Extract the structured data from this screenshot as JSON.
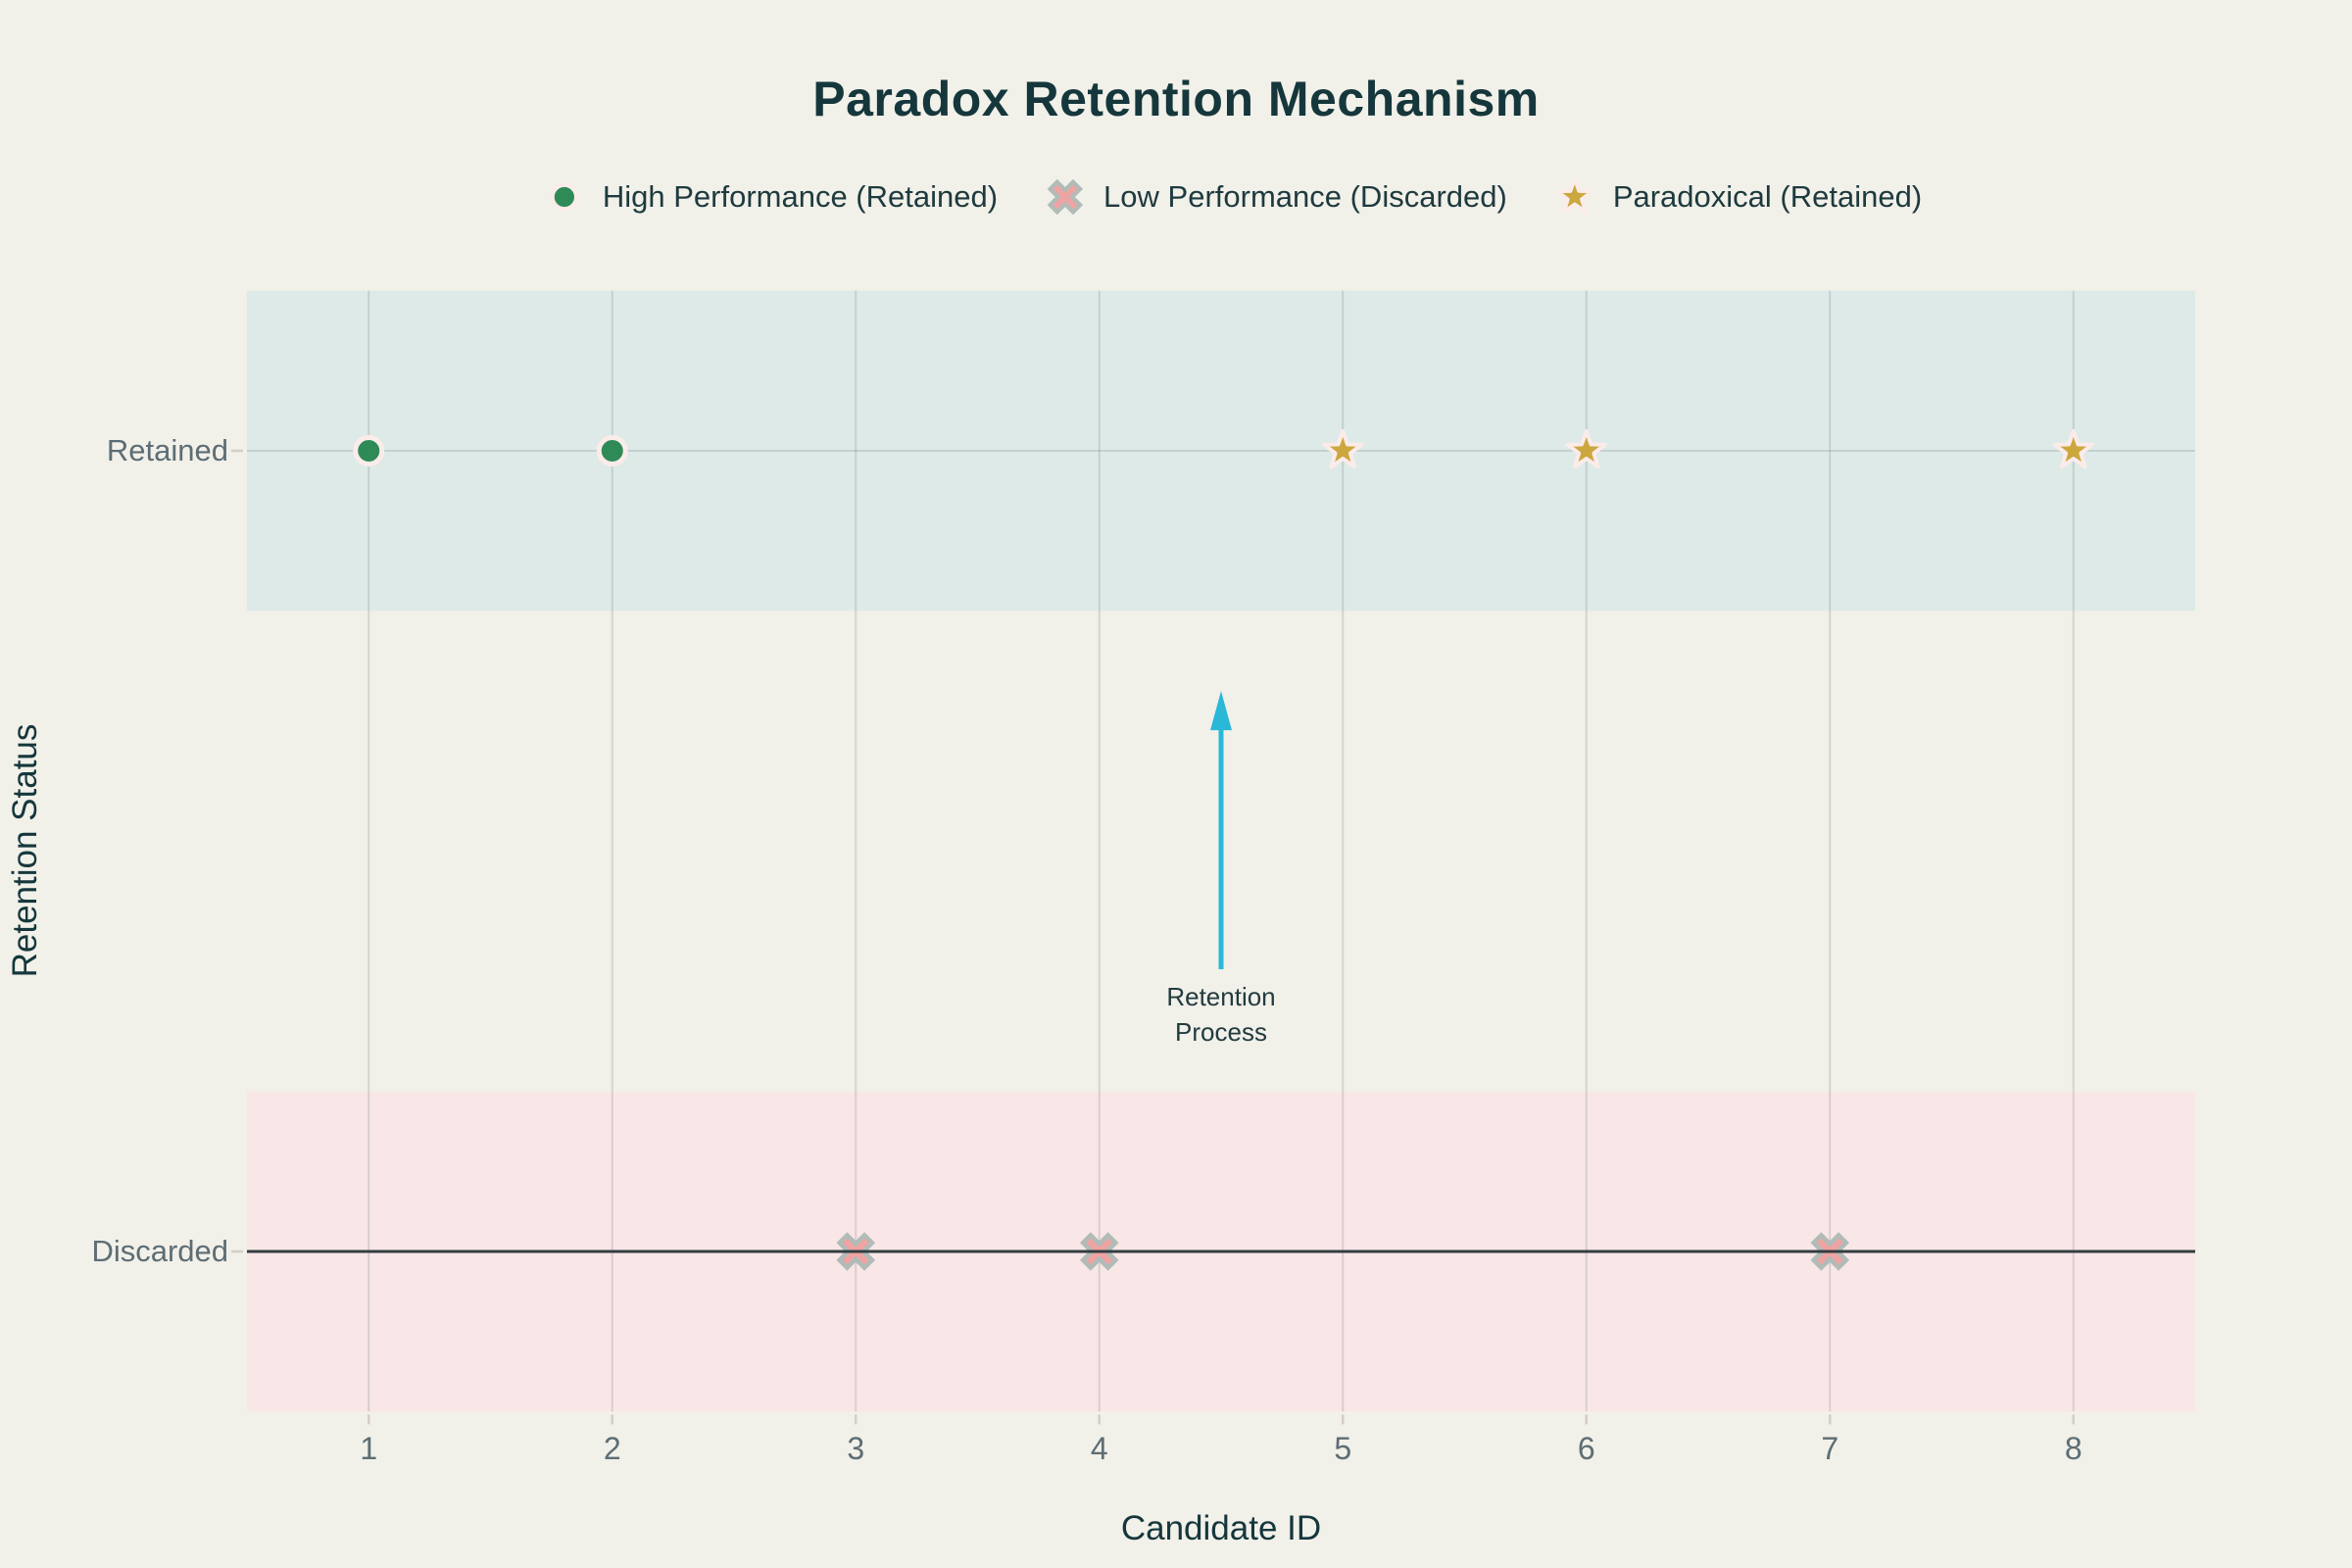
{
  "chart_data": {
    "type": "scatter",
    "title": "Paradox Retention Mechanism",
    "xlabel": "Candidate ID",
    "ylabel": "Retention Status",
    "x_range": [
      0.5,
      8.5
    ],
    "y_range": [
      -0.2,
      1.2
    ],
    "x_ticks": [
      1,
      2,
      3,
      4,
      5,
      6,
      7,
      8
    ],
    "y_ticks": [
      {
        "value": 1,
        "label": "Retained"
      },
      {
        "value": 0,
        "label": "Discarded"
      }
    ],
    "grid": true,
    "zeroline_y": 0,
    "legend_position": "top-center",
    "bands": [
      {
        "name": "retained-band",
        "from": 0.8,
        "to": 1.2,
        "color": "#deeae8"
      },
      {
        "name": "discarded-band",
        "from": -0.2,
        "to": 0.2,
        "color": "#f9e7e7"
      }
    ],
    "series": [
      {
        "name": "High Performance (Retained)",
        "marker": "circle",
        "color": "#2e8b57",
        "edge_color": "#fbecea",
        "points": [
          {
            "x": 1,
            "y": 1
          },
          {
            "x": 2,
            "y": 1
          }
        ]
      },
      {
        "name": "Low Performance (Discarded)",
        "marker": "x",
        "color": "#eea4a2",
        "edge_color": "#b1bbb8",
        "points": [
          {
            "x": 3,
            "y": 0
          },
          {
            "x": 4,
            "y": 0
          },
          {
            "x": 7,
            "y": 0
          }
        ]
      },
      {
        "name": "Paradoxical (Retained)",
        "marker": "star",
        "color": "#cba73d",
        "edge_color": "#fbecea",
        "points": [
          {
            "x": 5,
            "y": 1
          },
          {
            "x": 6,
            "y": 1
          },
          {
            "x": 8,
            "y": 1
          }
        ]
      }
    ],
    "annotation": {
      "lines": [
        "Retention",
        "Process"
      ],
      "x": 4.5,
      "arrow_from_y": 0.35,
      "arrow_to_y": 0.7,
      "arrow_color": "#2ab7d8"
    },
    "colors": {
      "background": "#f1f0e9",
      "title_text": "#15373c",
      "tick_text": "#5d6d74",
      "zeroline": "#333e41"
    }
  }
}
